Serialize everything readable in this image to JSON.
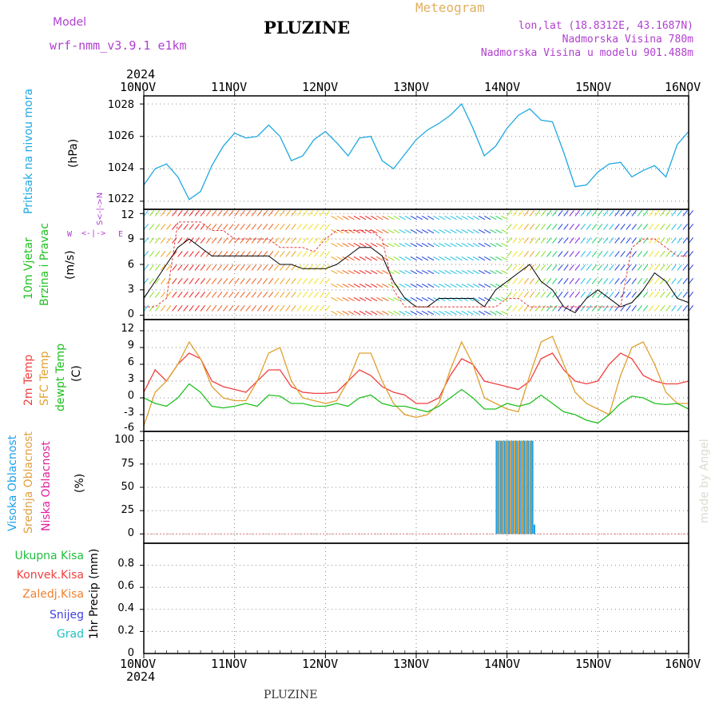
{
  "header": {
    "model_label": "Model",
    "model_value": "wrf-nmm_v3.9.1  e1km",
    "title": "PLUZINE",
    "meteogram_label": "Meteogram",
    "lonlat": "lon,lat (18.8312E, 43.1687N)",
    "altitude": "Nadmorska Visina 780m",
    "model_altitude": "Nadmorska Visina u modelu 901.488m"
  },
  "time_axis": {
    "year": "2024",
    "ticks": [
      "10NOV",
      "11NOV",
      "12NOV",
      "13NOV",
      "14NOV",
      "15NOV",
      "16NOV"
    ]
  },
  "footer": {
    "station": "PLUZINE",
    "credit": "made by Angel"
  },
  "colors": {
    "pressure": "#1fa8e0",
    "temp2m": "#f04040",
    "sfc": "#e0a030",
    "dew": "#20c020",
    "high_cloud": "#20a0e8",
    "mid_cloud": "#e0a040",
    "low_cloud": "#e020a0",
    "total_precip": "#20c040",
    "conv_precip": "#f04040",
    "frz_precip": "#f08030",
    "snow": "#4040e0",
    "hail": "#20c0c0",
    "model": "#b040d0",
    "meteogram": "#e0b060"
  },
  "panels": {
    "pressure": {
      "label1": "Pritisak na nivou mora",
      "unit": "(hPa)",
      "ticks": [
        "1022",
        "1024",
        "1026",
        "1028"
      ]
    },
    "wind": {
      "label1": "10m Vjetar",
      "label2": "Brzina i Pravac",
      "unit": "(m/s)",
      "ticks": [
        "0",
        "3",
        "6",
        "9",
        "12"
      ],
      "compass_w": "W",
      "compass_e": "E",
      "compass_top": "N",
      "compass_bottom": "S"
    },
    "temp": {
      "label1": "2m Temp",
      "label2": "SFC Temp",
      "label3": "dewpt Temp",
      "unit": "(C)",
      "ticks": [
        "-6",
        "-3",
        "0",
        "3",
        "6",
        "9",
        "12"
      ]
    },
    "cloud": {
      "label1": "Visoka Oblacnost",
      "label2": "Srednja Oblacnost",
      "label3": "Niska Oblacnost",
      "unit": "(%)",
      "ticks": [
        "0",
        "25",
        "50",
        "75",
        "100"
      ]
    },
    "precip": {
      "legend": [
        "Ukupna Kisa",
        "Konvek.Kisa",
        "Zaledj.Kisa",
        "Snijeg",
        "Grad"
      ],
      "unit": "1hr Precip (mm)",
      "ticks": [
        "0",
        "0.2",
        "0.4",
        "0.6",
        "0.8"
      ]
    }
  },
  "chart_data": [
    {
      "type": "line",
      "title": "",
      "ylabel": "Pritisak na nivou mora (hPa)",
      "ylim": [
        1021.5,
        1028.5
      ],
      "x": [
        0,
        3,
        6,
        9,
        12,
        15,
        18,
        21,
        24,
        27,
        30,
        33,
        36,
        39,
        42,
        45,
        48,
        51,
        54,
        57,
        60,
        63,
        66,
        69,
        72,
        75,
        78,
        81,
        84,
        87,
        90,
        93,
        96,
        99,
        102,
        105,
        108,
        111,
        114,
        117,
        120,
        123,
        126,
        129,
        132,
        135,
        138,
        141,
        144
      ],
      "series": [
        {
          "values": [
            1023.0,
            1024.0,
            1024.3,
            1023.5,
            1022.1,
            1022.6,
            1024.2,
            1025.4,
            1026.2,
            1025.9,
            1026.0,
            1026.7,
            1026.0,
            1024.5,
            1024.8,
            1025.8,
            1026.3,
            1025.6,
            1024.8,
            1025.9,
            1026.0,
            1024.5,
            1024.0,
            1024.9,
            1025.8,
            1026.4,
            1026.8,
            1027.3,
            1028.0,
            1026.5,
            1024.8,
            1025.4,
            1026.5,
            1027.3,
            1027.7,
            1027.0,
            1026.9,
            1025.0,
            1022.9,
            1023.0,
            1023.8,
            1024.3,
            1024.4,
            1023.5,
            1023.9,
            1024.2,
            1023.5,
            1025.5,
            1026.3
          ]
        }
      ],
      "grid": true
    },
    {
      "type": "line",
      "title": "",
      "ylabel": "10m Vjetar Brzina i Pravac (m/s)",
      "ylim": [
        -0.5,
        12.5
      ],
      "x": [
        0,
        3,
        6,
        9,
        12,
        15,
        18,
        21,
        24,
        27,
        30,
        33,
        36,
        39,
        42,
        45,
        48,
        51,
        54,
        57,
        60,
        63,
        66,
        69,
        72,
        75,
        78,
        81,
        84,
        87,
        90,
        93,
        96,
        99,
        102,
        105,
        108,
        111,
        114,
        117,
        120,
        123,
        126,
        129,
        132,
        135,
        138,
        141,
        144
      ],
      "series": [
        {
          "values": [
            2,
            4,
            6,
            8,
            9,
            8,
            7,
            7,
            7,
            7,
            7,
            7,
            6,
            6,
            5.5,
            5.5,
            5.5,
            6,
            7,
            8,
            8,
            7,
            4,
            2,
            1,
            1,
            2,
            2,
            2,
            2,
            1,
            3,
            4,
            5,
            6,
            4,
            3,
            1,
            0.3,
            2,
            3,
            2,
            1,
            1.5,
            3,
            5,
            4,
            2,
            1.5
          ]
        },
        {
          "values": [
            1,
            1,
            2,
            11,
            11,
            11,
            10,
            10,
            9,
            9,
            9,
            9,
            8,
            8,
            8,
            7.5,
            9,
            10,
            10,
            10,
            10,
            9,
            3,
            1,
            1,
            1,
            1,
            1,
            1,
            1,
            1,
            1,
            2,
            2,
            1,
            1,
            1,
            1,
            1,
            1,
            1,
            1,
            1,
            8,
            9,
            9,
            8,
            7,
            7
          ]
        }
      ],
      "grid": true
    },
    {
      "type": "line",
      "title": "",
      "ylabel": "Temp (C)",
      "ylim": [
        -6,
        14
      ],
      "x": [
        0,
        3,
        6,
        9,
        12,
        15,
        18,
        21,
        24,
        27,
        30,
        33,
        36,
        39,
        42,
        45,
        48,
        51,
        54,
        57,
        60,
        63,
        66,
        69,
        72,
        75,
        78,
        81,
        84,
        87,
        90,
        93,
        96,
        99,
        102,
        105,
        108,
        111,
        114,
        117,
        120,
        123,
        126,
        129,
        132,
        135,
        138,
        141,
        144
      ],
      "series": [
        {
          "name": "2m Temp",
          "values": [
            1,
            5,
            3,
            6,
            8,
            7,
            3,
            2,
            1.5,
            1,
            3,
            5,
            5,
            2,
            1,
            0.8,
            0.8,
            1,
            3,
            5,
            4,
            2,
            1,
            0.5,
            -1,
            -1,
            0,
            4,
            7,
            6,
            3,
            2.5,
            2,
            1.5,
            3,
            7,
            8,
            5,
            3,
            2.5,
            3,
            6,
            8,
            7,
            4,
            3,
            2.5,
            2.5,
            3
          ]
        },
        {
          "name": "SFC Temp",
          "values": [
            -5,
            1,
            3,
            6,
            10,
            7,
            2,
            0,
            -0.5,
            -0.5,
            3,
            8,
            9,
            3,
            0,
            -0.5,
            -1,
            -0.5,
            3,
            8,
            8,
            3,
            -1,
            -3,
            -3.5,
            -3,
            -1,
            5,
            10,
            6,
            0,
            -1,
            -2,
            -2.5,
            4,
            10,
            11,
            6,
            1,
            -1,
            -2,
            -3,
            4,
            9,
            10,
            6,
            1,
            -1,
            -1
          ]
        },
        {
          "name": "dewpt Temp",
          "values": [
            0,
            -1,
            -1.5,
            0,
            2.5,
            1,
            -1.5,
            -1.8,
            -1.5,
            -1,
            -1.5,
            0.5,
            0.3,
            -1,
            -1,
            -1.5,
            -1.5,
            -1,
            -1.5,
            0,
            0.5,
            -1,
            -1.5,
            -1.5,
            -2,
            -2.5,
            -1.5,
            0,
            1.5,
            0,
            -2,
            -2,
            -1,
            -1.5,
            -1,
            0.5,
            -1,
            -2.5,
            -3,
            -4,
            -4.5,
            -3,
            -1,
            0.3,
            0,
            -1,
            -1.2,
            -1,
            -2
          ]
        }
      ],
      "grid": true
    },
    {
      "type": "bar",
      "title": "",
      "ylabel": "Oblacnost (%)",
      "ylim": [
        -10,
        110
      ],
      "x_hours": [
        93,
        93.5,
        94,
        94.5,
        95,
        95.5,
        96,
        96.5,
        97,
        97.5,
        98,
        98.5,
        99,
        99.5,
        100,
        100.5,
        101,
        101.5,
        102,
        102.5,
        103
      ],
      "series": [
        {
          "name": "Visoka Oblacnost",
          "values": [
            100,
            100,
            100,
            100,
            100,
            100,
            100,
            100,
            100,
            100,
            100,
            100,
            100,
            100,
            100,
            100,
            100,
            100,
            100,
            100,
            10
          ]
        },
        {
          "name": "Srednja Oblacnost",
          "values": [
            0,
            100,
            0,
            100,
            0,
            100,
            0,
            100,
            0,
            100,
            0,
            100,
            0,
            100,
            0,
            100,
            0,
            100,
            0,
            0,
            0
          ]
        },
        {
          "name": "Niska Oblacnost",
          "values": [
            0,
            0,
            0,
            0,
            0,
            0,
            0,
            0,
            0,
            0,
            0,
            0,
            0,
            0,
            0,
            0,
            0,
            0,
            0,
            0,
            0
          ]
        }
      ],
      "grid": true
    },
    {
      "type": "bar",
      "title": "",
      "ylabel": "1hr Precip (mm)",
      "ylim": [
        0,
        1.0
      ],
      "series": [
        {
          "name": "Ukupna Kisa",
          "values": []
        }
      ],
      "grid": true
    }
  ]
}
